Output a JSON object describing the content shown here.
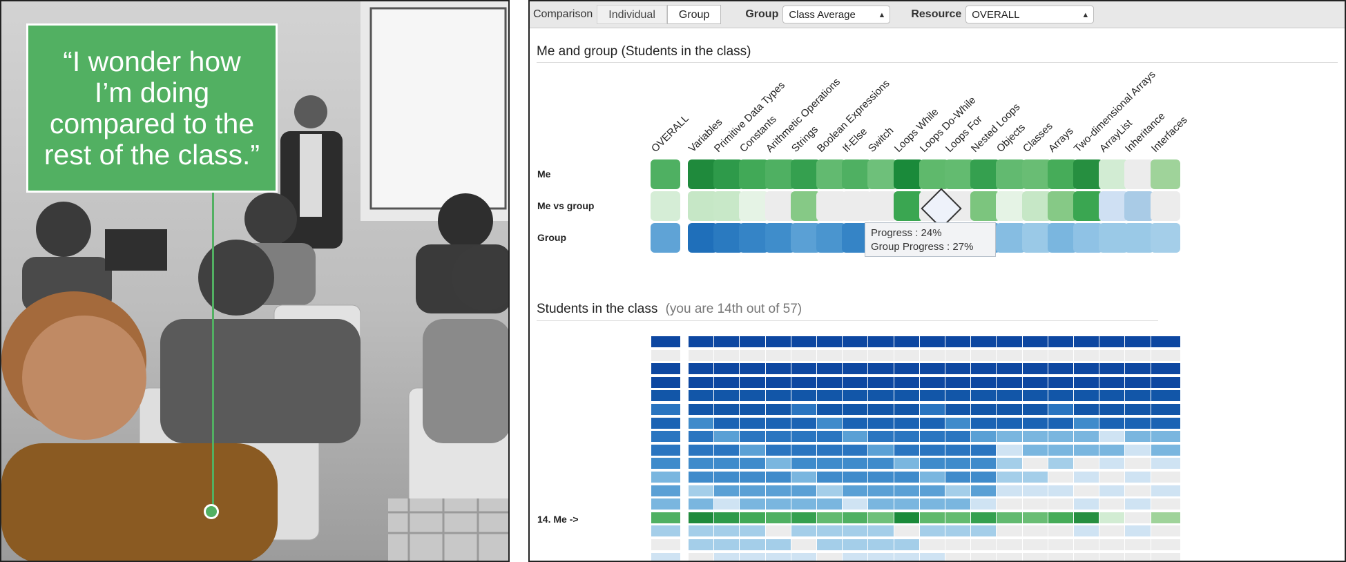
{
  "photo": {
    "quote": "“I wonder how I’m doing compared to the rest of the class.”",
    "accent": "#52b062"
  },
  "toolbar": {
    "comparison_label": "Comparison",
    "tabs": [
      {
        "label": "Individual",
        "active": false
      },
      {
        "label": "Group",
        "active": true
      }
    ],
    "group_label": "Group",
    "group_value": "Class Average",
    "resource_label": "Resource",
    "resource_value": "OVERALL"
  },
  "me_and_group": {
    "title": "Me and group (Students in the class)",
    "topics": [
      "OVERALL",
      "Variables",
      "Primitive Data Types",
      "Constants",
      "Arithmetic Operations",
      "Strings",
      "Boolean Expressions",
      "If-Else",
      "Switch",
      "Loops While",
      "Loops Do-While",
      "Loops For",
      "Nested Loops",
      "Objects",
      "Classes",
      "Arrays",
      "Two-dimensional Arrays",
      "ArrayList",
      "Inheritance",
      "Interfaces"
    ],
    "rows": [
      {
        "label": "Me",
        "colors": [
          "#4fb062",
          "#1f8a3c",
          "#2e9a4a",
          "#41a957",
          "#4fb062",
          "#35a04f",
          "#62ba70",
          "#4fb062",
          "#6ec07a",
          "#1a8a3a",
          "#5fb96c",
          "#63bb70",
          "#35a04f",
          "#62ba70",
          "#69bd74",
          "#46ac59",
          "#268f40",
          "#d2ecd3",
          "#ececec",
          "#9fd39a"
        ]
      },
      {
        "label": "Me vs group",
        "colors": [
          "#d5edd6",
          "#c6e7c6",
          "#c8e8c8",
          "#e5f3e5",
          "#ececec",
          "#86c986",
          "#ececec",
          "#ececec",
          "#ececec",
          "#3aa651",
          "#ececec",
          "#ececec",
          "#7cc57e",
          "#e5f3e5",
          "#c6e7c6",
          "#86c986",
          "#3aa651",
          "#cfe0f3",
          "#a9cbe6",
          "#ececec"
        ]
      },
      {
        "label": "Group",
        "colors": [
          "#5fa3d6",
          "#1f6fba",
          "#2a7ac0",
          "#3584c6",
          "#3f8dcb",
          "#5aa0d5",
          "#4a95cf",
          "#3584c6",
          "#4a95cf",
          "#3f8dcb",
          "#5aa0d5",
          "#6eaedb",
          "#5aa0d5",
          "#86bde2",
          "#9ac9e7",
          "#7ab6df",
          "#8fc2e5",
          "#9ac9e7",
          "#9ac9e7",
          "#a4cee9"
        ]
      }
    ],
    "tooltip": {
      "line1": "Progress : 24%",
      "line2": "Group Progress : 27%"
    }
  },
  "students": {
    "title": "Students in the class",
    "subtitle": "(you are 14th out of 57)",
    "me_row_label": "14. Me ->"
  }
}
